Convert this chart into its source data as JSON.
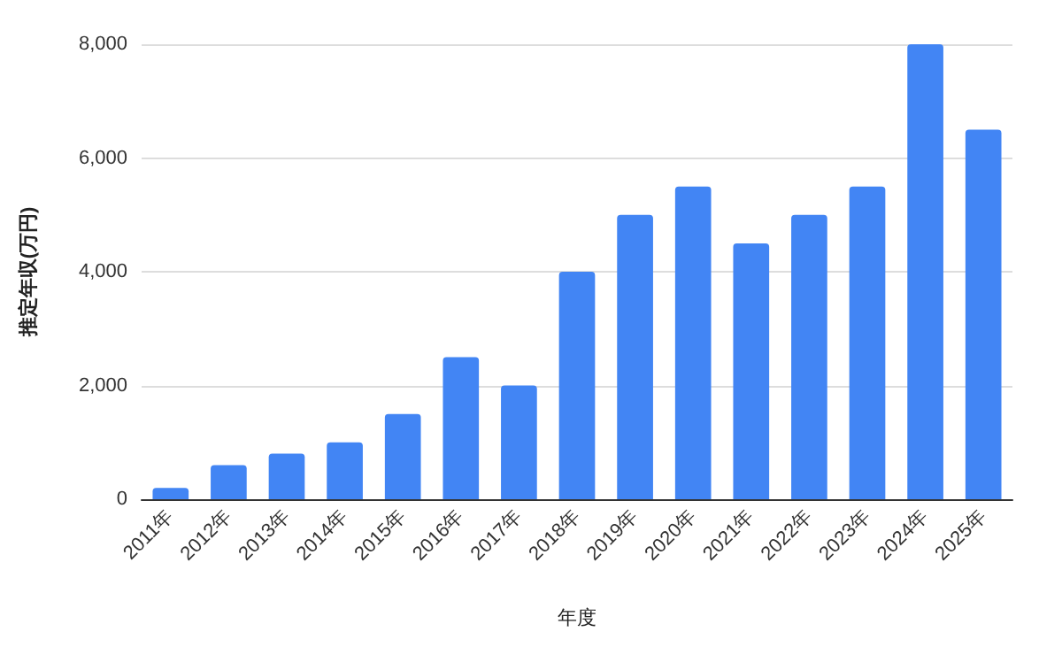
{
  "chart_data": {
    "type": "bar",
    "xlabel": "年度",
    "ylabel": "推定年収(万円)",
    "categories": [
      "2011年",
      "2012年",
      "2013年",
      "2014年",
      "2015年",
      "2016年",
      "2017年",
      "2018年",
      "2019年",
      "2020年",
      "2021年",
      "2022年",
      "2023年",
      "2024年",
      "2025年"
    ],
    "values": [
      200,
      600,
      800,
      1000,
      1500,
      2500,
      2000,
      4000,
      5000,
      5500,
      4500,
      5000,
      5500,
      8000,
      6500
    ],
    "color": "#4285f4",
    "ylim": [
      0,
      8000
    ],
    "yticks": [
      {
        "value": 0,
        "label": "0"
      },
      {
        "value": 2000,
        "label": "2,000"
      },
      {
        "value": 4000,
        "label": "4,000"
      },
      {
        "value": 6000,
        "label": "6,000"
      },
      {
        "value": 8000,
        "label": "8,000"
      }
    ],
    "grid": "y"
  }
}
